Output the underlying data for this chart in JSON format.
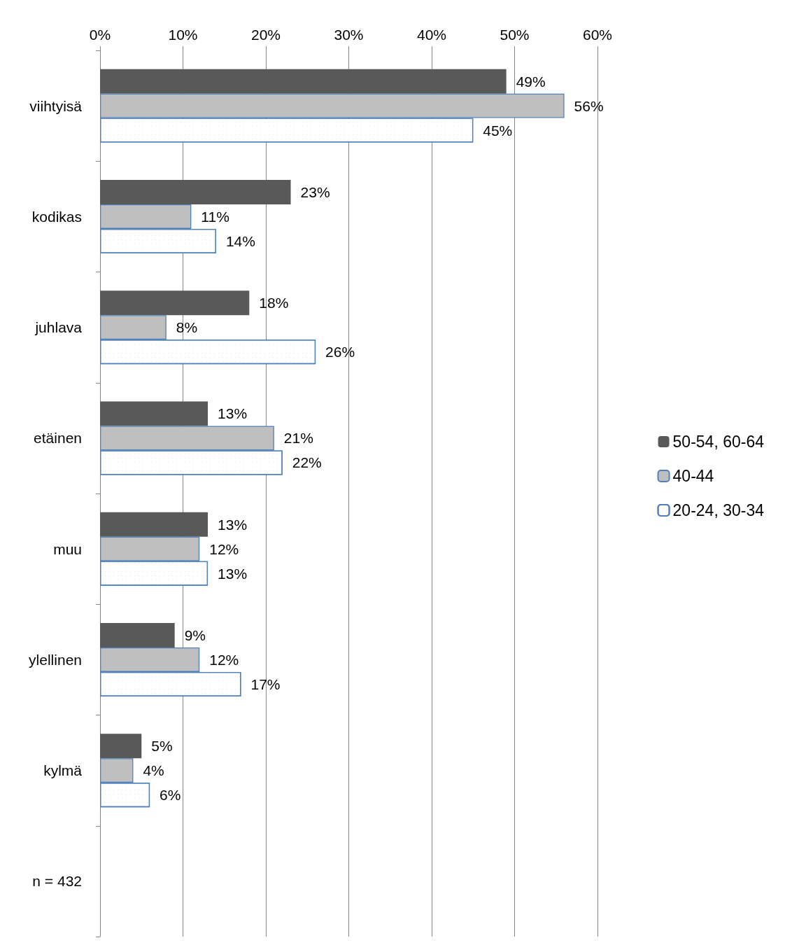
{
  "chart_data": {
    "type": "bar",
    "orientation": "horizontal",
    "categories": [
      "viihtyisä",
      "kodikas",
      "juhlava",
      "etäinen",
      "muu",
      "ylellinen",
      "kylmä",
      "n = 432"
    ],
    "series": [
      {
        "name": "50-54, 60-64",
        "color": "#595959",
        "values": [
          49,
          23,
          18,
          13,
          13,
          9,
          5,
          null
        ],
        "value_labels": [
          "49%",
          "23%",
          "18%",
          "13%",
          "13%",
          "9%",
          "5%",
          null
        ]
      },
      {
        "name": "40-44",
        "color": "#bfbfbf",
        "values": [
          56,
          11,
          8,
          21,
          12,
          12,
          4,
          null
        ],
        "value_labels": [
          "56%",
          "11%",
          "8%",
          "21%",
          "12%",
          "12%",
          "4%",
          null
        ]
      },
      {
        "name": "20-24, 30-34",
        "color": "#ffffff",
        "values": [
          45,
          14,
          26,
          22,
          13,
          17,
          6,
          null
        ],
        "value_labels": [
          "45%",
          "14%",
          "26%",
          "22%",
          "13%",
          "17%",
          "6%",
          null
        ]
      }
    ],
    "xlim": [
      0,
      60
    ],
    "xticks": [
      {
        "value": 0,
        "label": "0%"
      },
      {
        "value": 10,
        "label": "10%"
      },
      {
        "value": 20,
        "label": "20%"
      },
      {
        "value": 30,
        "label": "30%"
      },
      {
        "value": 40,
        "label": "40%"
      },
      {
        "value": 50,
        "label": "50%"
      },
      {
        "value": 60,
        "label": "60%"
      }
    ],
    "grid": "x",
    "legend": "right"
  }
}
